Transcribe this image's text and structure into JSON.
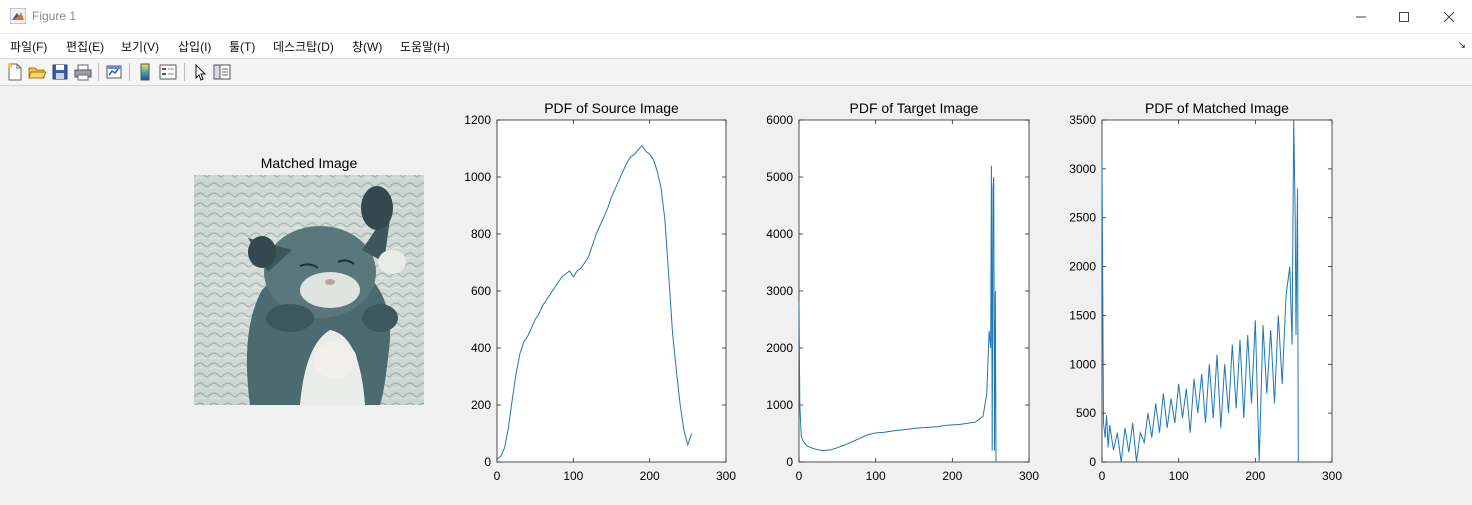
{
  "window": {
    "title": "Figure 1"
  },
  "menu": [
    "파일(F)",
    "편집(E)",
    "보기(V)",
    "삽입(I)",
    "툴(T)",
    "데스크탑(D)",
    "창(W)",
    "도움말(H)"
  ],
  "toolbar": {
    "icons": [
      "new-figure-icon",
      "open-file-icon",
      "save-icon",
      "print-icon",
      "link-plot-icon",
      "insert-colorbar-icon",
      "insert-legend-icon",
      "edit-plot-icon",
      "property-inspector-icon"
    ]
  },
  "image_panel": {
    "title": "Matched Image"
  },
  "colors": {
    "series": "#1f77b4",
    "image_base": "#5f7f84"
  },
  "chart_data": [
    {
      "type": "line",
      "title": "PDF of Source Image",
      "xlim": [
        0,
        300
      ],
      "ylim": [
        0,
        1200
      ],
      "xticks": [
        0,
        100,
        200,
        300
      ],
      "yticks": [
        0,
        200,
        400,
        600,
        800,
        1000,
        1200
      ],
      "series": [
        {
          "x": [
            0,
            5,
            10,
            15,
            20,
            25,
            30,
            35,
            40,
            45,
            50,
            55,
            60,
            65,
            70,
            75,
            80,
            85,
            90,
            95,
            100,
            105,
            110,
            115,
            120,
            125,
            130,
            135,
            140,
            145,
            150,
            155,
            160,
            165,
            170,
            175,
            180,
            185,
            190,
            195,
            200,
            205,
            210,
            215,
            220,
            225,
            230,
            235,
            240,
            245,
            250,
            255
          ],
          "y": [
            10,
            20,
            50,
            120,
            220,
            310,
            380,
            420,
            440,
            470,
            500,
            520,
            550,
            570,
            590,
            610,
            630,
            650,
            660,
            670,
            650,
            670,
            680,
            700,
            720,
            760,
            800,
            830,
            860,
            890,
            930,
            960,
            990,
            1020,
            1050,
            1070,
            1080,
            1095,
            1110,
            1090,
            1080,
            1060,
            1020,
            960,
            850,
            650,
            450,
            320,
            200,
            110,
            60,
            100
          ]
        }
      ]
    },
    {
      "type": "line",
      "title": "PDF of Target Image",
      "xlim": [
        0,
        300
      ],
      "ylim": [
        0,
        6000
      ],
      "xticks": [
        0,
        100,
        200,
        300
      ],
      "yticks": [
        0,
        1000,
        2000,
        3000,
        4000,
        5000,
        6000
      ],
      "series": [
        {
          "x": [
            0,
            1,
            3,
            5,
            10,
            20,
            30,
            40,
            50,
            60,
            70,
            80,
            90,
            100,
            110,
            120,
            130,
            140,
            150,
            160,
            170,
            180,
            190,
            200,
            210,
            220,
            230,
            240,
            245,
            248,
            250,
            251,
            252,
            253,
            254,
            255,
            256,
            257
          ],
          "y": [
            2800,
            1000,
            450,
            380,
            280,
            230,
            200,
            210,
            250,
            300,
            360,
            420,
            480,
            510,
            520,
            540,
            560,
            570,
            590,
            600,
            610,
            620,
            640,
            650,
            660,
            680,
            700,
            800,
            1200,
            2300,
            2000,
            5200,
            200,
            4800,
            5000,
            200,
            3000,
            0
          ]
        }
      ]
    },
    {
      "type": "line",
      "title": "PDF of Matched Image",
      "xlim": [
        0,
        300
      ],
      "ylim": [
        0,
        3500
      ],
      "xticks": [
        0,
        100,
        200,
        300
      ],
      "yticks": [
        0,
        500,
        1000,
        1500,
        2000,
        2500,
        3000,
        3500
      ],
      "series": [
        {
          "x": [
            0,
            2,
            4,
            6,
            8,
            10,
            15,
            20,
            25,
            30,
            35,
            40,
            45,
            50,
            55,
            60,
            65,
            70,
            75,
            80,
            85,
            90,
            95,
            100,
            105,
            110,
            115,
            120,
            125,
            130,
            135,
            140,
            145,
            150,
            155,
            160,
            165,
            170,
            175,
            180,
            185,
            190,
            195,
            200,
            205,
            210,
            215,
            220,
            225,
            230,
            235,
            240,
            245,
            248,
            250,
            252,
            253,
            255,
            256
          ],
          "y": [
            3100,
            400,
            250,
            480,
            150,
            380,
            120,
            300,
            0,
            350,
            100,
            400,
            0,
            300,
            200,
            500,
            250,
            600,
            300,
            700,
            350,
            650,
            400,
            800,
            450,
            750,
            300,
            850,
            500,
            900,
            400,
            1000,
            450,
            1100,
            350,
            1000,
            500,
            1200,
            550,
            1250,
            450,
            1300,
            600,
            1450,
            0,
            1400,
            700,
            1350,
            600,
            1500,
            800,
            1700,
            2000,
            1200,
            3500,
            2500,
            1300,
            2800,
            0
          ]
        }
      ]
    }
  ]
}
